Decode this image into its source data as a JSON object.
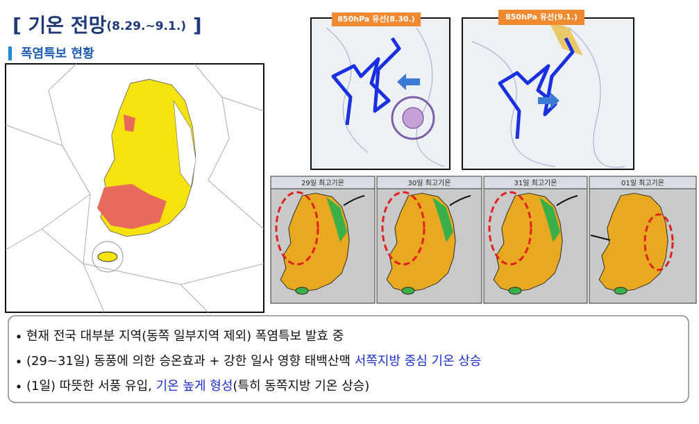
{
  "header": {
    "title": {
      "open": "[",
      "main": "기온 전망",
      "date": "(8.29.~9.1.)",
      "close": "]"
    },
    "subtitle": "폭염특보 현황"
  },
  "streamline_maps": [
    "850hPa 유선(8.30.)",
    "850hPa 유선(9.1.)"
  ],
  "temperature_panels": [
    "29일 최고기온",
    "30일 최고기온",
    "31일 최고기온",
    "01일 최고기온"
  ],
  "bullets": [
    {
      "segments": [
        {
          "text": "현재 전국 대부분 지역(동쪽 일부지역 제외) 폭염특보 발효 중",
          "emphasis": false
        }
      ]
    },
    {
      "segments": [
        {
          "text": "(29~31일) 동풍에 의한 승온효과 + 강한 일사 영향 태백산맥 ",
          "emphasis": false
        },
        {
          "text": "서쪽지방 중심 기온 상승",
          "emphasis": true
        }
      ]
    },
    {
      "segments": [
        {
          "text": "(1일) 따뜻한 서풍 유입, ",
          "emphasis": false
        },
        {
          "text": "기온 높게 형성",
          "emphasis": true
        },
        {
          "text": "(특히 동쪽지방 기온 상승)",
          "emphasis": false
        }
      ]
    }
  ]
}
